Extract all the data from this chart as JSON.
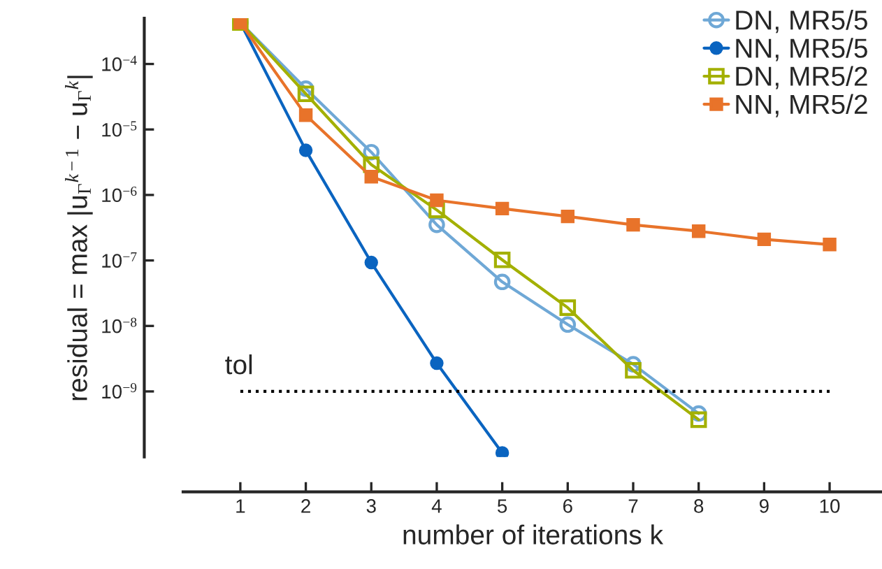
{
  "chart_data": {
    "type": "line",
    "xlabel": "number of iterations k",
    "ylabel": "residual = max |u$_{Γ}$$^{k−1}$ − u$_{Γ}$$^{k}$|",
    "log": "y",
    "xlim": [
      0.126,
      10.8
    ],
    "xticks": [
      1,
      2,
      3,
      4,
      5,
      6,
      7,
      8,
      9,
      10
    ],
    "ylim": [
      1e-10,
      0.0005
    ],
    "yticks": [
      {
        "value": 1e-09,
        "label": "10$^{−9}$"
      },
      {
        "value": 1e-08,
        "label": "10$^{−8}$"
      },
      {
        "value": 1e-07,
        "label": "10$^{−7}$"
      },
      {
        "value": 1e-06,
        "label": "10$^{−6}$"
      },
      {
        "value": 1e-05,
        "label": "10$^{−5}$"
      },
      {
        "value": 0.0001,
        "label": "10$^{−4}$"
      }
    ],
    "grid": false,
    "legend": "top right",
    "line_style": "solid",
    "ref_lines": [
      {
        "axis": "y",
        "value": 1e-09,
        "label": "tol",
        "color": "#000000",
        "line_style": "dotted"
      }
    ],
    "series": [
      {
        "name": "DN, MR5/5",
        "color": "#6fa8d6",
        "marker": "circle",
        "x": [
          1,
          2,
          3,
          4,
          5,
          6,
          7,
          8
        ],
        "values": [
          0.00043,
          4.2e-05,
          4.5e-06,
          3.5e-07,
          4.7e-08,
          1.05e-08,
          2.6e-09,
          4.6e-10
        ]
      },
      {
        "name": "NN, MR5/5",
        "color": "#0a64c0",
        "marker": "circle",
        "x": [
          1,
          2,
          3,
          4,
          5
        ],
        "values": [
          0.00043,
          4.8e-06,
          9.3e-08,
          2.7e-09,
          1.15e-10
        ]
      },
      {
        "name": "DN, MR5/2",
        "color": "#a3b000",
        "marker": "square",
        "x": [
          1,
          2,
          3,
          4,
          5,
          6,
          7,
          8
        ],
        "values": [
          0.00043,
          3.5e-05,
          2.9e-06,
          5.9e-07,
          1.02e-07,
          1.9e-08,
          2.1e-09,
          3.7e-10
        ]
      },
      {
        "name": "NN, MR5/2",
        "color": "#e8732a",
        "marker": "square",
        "x": [
          1,
          2,
          3,
          4,
          5,
          6,
          7,
          8,
          9,
          10
        ],
        "values": [
          0.00043,
          1.65e-05,
          1.9e-06,
          8.3e-07,
          6.2e-07,
          4.7e-07,
          3.5e-07,
          2.8e-07,
          2.1e-07,
          1.75e-07
        ]
      }
    ]
  }
}
